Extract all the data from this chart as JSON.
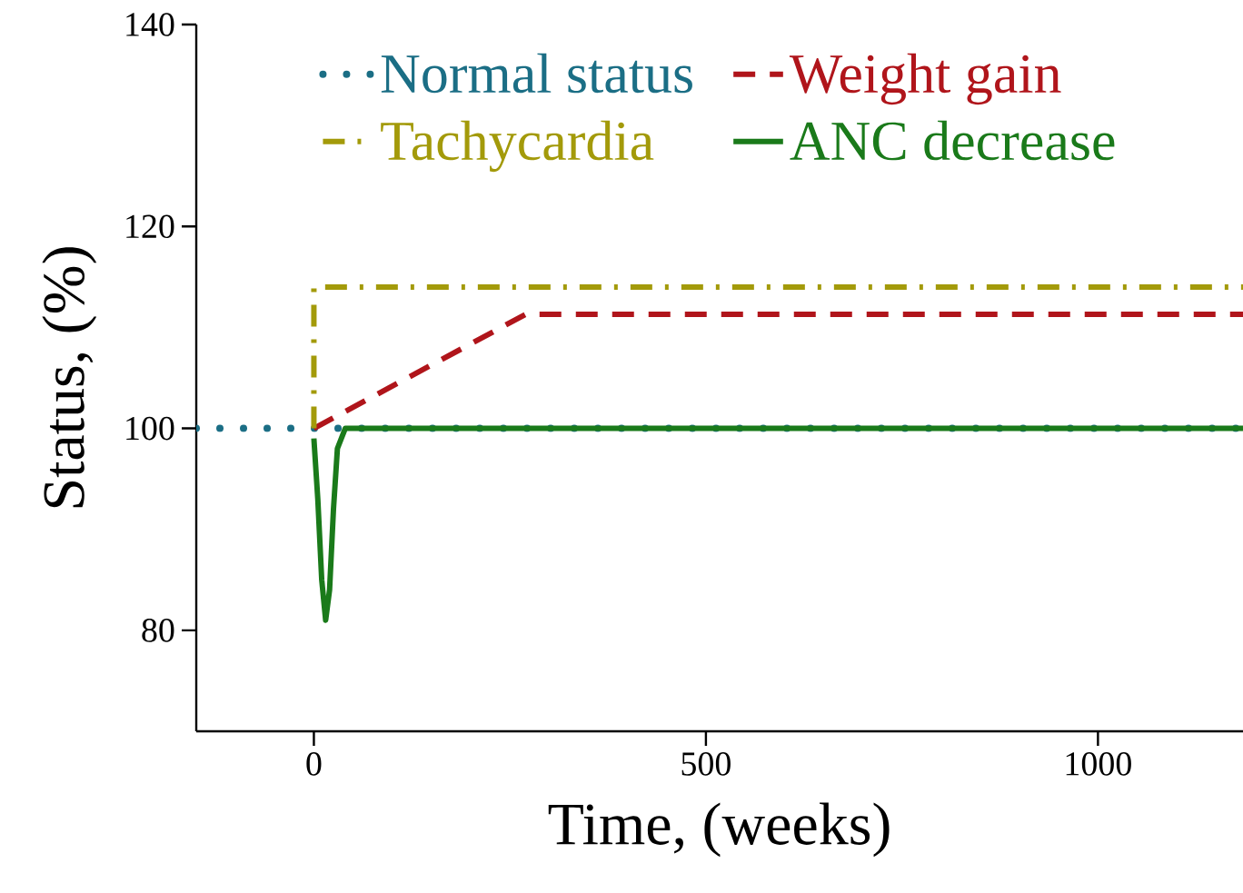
{
  "chart_data": {
    "type": "line",
    "xlabel": "Time, (weeks)",
    "ylabel": "Status, (%)",
    "xlim": [
      -150,
      1185
    ],
    "ylim": [
      70,
      140
    ],
    "xticks": [
      0,
      500,
      1000
    ],
    "yticks": [
      80,
      100,
      120,
      140
    ],
    "grid": false,
    "legend": "top",
    "marker": "none",
    "series": [
      {
        "name": "Normal status",
        "color": "#1b6e85",
        "line_style": "dotted",
        "x": [
          -150,
          1185
        ],
        "values": [
          100,
          100
        ]
      },
      {
        "name": "Weight gain",
        "color": "#b0151b",
        "line_style": "dashed",
        "x": [
          0,
          270,
          1185
        ],
        "values": [
          100,
          111.3,
          111.3
        ]
      },
      {
        "name": "Tachycardia",
        "color": "#a39a0a",
        "line_style": "dashdot",
        "x": [
          0,
          0,
          1185
        ],
        "values": [
          100,
          114,
          114
        ]
      },
      {
        "name": "ANC decrease",
        "color": "#1a7a1a",
        "line_style": "solid",
        "x": [
          0,
          5,
          10,
          15,
          20,
          25,
          30,
          40,
          1185
        ],
        "values": [
          99,
          93,
          85,
          81,
          84,
          92,
          98,
          100,
          100
        ]
      }
    ]
  }
}
